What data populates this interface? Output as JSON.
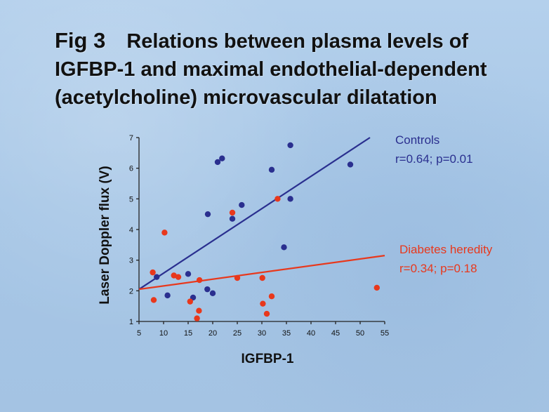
{
  "slide": {
    "fig_label": "Fig 3",
    "title": "Relations between plasma levels of IGFBP-1 and maximal endothelial-dependent (acetylcholine) microvascular dilatation"
  },
  "chart_data": {
    "type": "scatter",
    "xlabel": "IGFBP-1",
    "ylabel": "Laser Doppler flux (V)",
    "xlim": [
      5,
      55
    ],
    "ylim": [
      1,
      7
    ],
    "xticks": [
      5,
      10,
      15,
      20,
      25,
      30,
      35,
      40,
      45,
      50,
      55
    ],
    "yticks": [
      1,
      2,
      3,
      4,
      5,
      6,
      7
    ],
    "grid": false,
    "series": [
      {
        "name": "Controls",
        "stat_label": "r=0.64; p=0.01",
        "color": "#2a2f8f",
        "points": [
          {
            "x": 8.6,
            "y": 2.45
          },
          {
            "x": 10.8,
            "y": 1.85
          },
          {
            "x": 15.0,
            "y": 2.55
          },
          {
            "x": 16.0,
            "y": 1.78
          },
          {
            "x": 18.9,
            "y": 2.05
          },
          {
            "x": 19.0,
            "y": 4.5
          },
          {
            "x": 20.0,
            "y": 1.92
          },
          {
            "x": 21.0,
            "y": 6.2
          },
          {
            "x": 21.9,
            "y": 6.32
          },
          {
            "x": 24.0,
            "y": 4.35
          },
          {
            "x": 25.9,
            "y": 4.8
          },
          {
            "x": 32.0,
            "y": 5.95
          },
          {
            "x": 34.5,
            "y": 3.42
          },
          {
            "x": 35.8,
            "y": 5.0
          },
          {
            "x": 35.8,
            "y": 6.75
          },
          {
            "x": 48.0,
            "y": 6.12
          }
        ],
        "trend": {
          "x": [
            5,
            52
          ],
          "y": [
            2.05,
            7.0
          ]
        }
      },
      {
        "name": "Diabetes heredity",
        "stat_label": "r=0.34; p=0.18",
        "color": "#e8381c",
        "points": [
          {
            "x": 7.8,
            "y": 2.6
          },
          {
            "x": 8.0,
            "y": 1.7
          },
          {
            "x": 10.2,
            "y": 3.9
          },
          {
            "x": 12.1,
            "y": 2.5
          },
          {
            "x": 13.0,
            "y": 2.45
          },
          {
            "x": 15.4,
            "y": 1.65
          },
          {
            "x": 16.8,
            "y": 1.1
          },
          {
            "x": 17.2,
            "y": 1.35
          },
          {
            "x": 17.3,
            "y": 2.35
          },
          {
            "x": 24.0,
            "y": 4.55
          },
          {
            "x": 25.0,
            "y": 2.42
          },
          {
            "x": 30.1,
            "y": 2.42
          },
          {
            "x": 30.2,
            "y": 1.58
          },
          {
            "x": 31.0,
            "y": 1.25
          },
          {
            "x": 32.0,
            "y": 1.82
          },
          {
            "x": 33.2,
            "y": 5.0
          },
          {
            "x": 53.4,
            "y": 2.1
          }
        ],
        "trend": {
          "x": [
            5,
            55
          ],
          "y": [
            2.05,
            3.15
          ]
        }
      }
    ]
  }
}
